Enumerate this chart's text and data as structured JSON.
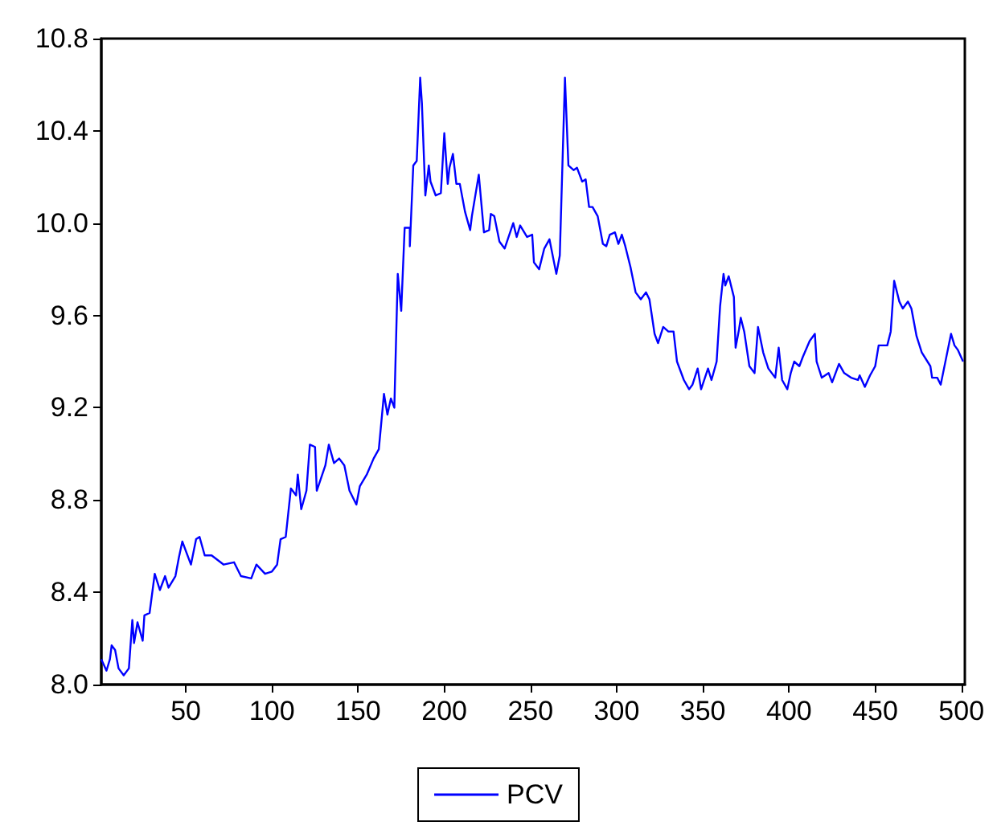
{
  "chart_data": {
    "type": "line",
    "legend": "bottom",
    "grid": false,
    "marker": "none",
    "line_style": "solid",
    "xlim": [
      1,
      502
    ],
    "xticks": [
      50,
      100,
      150,
      200,
      250,
      300,
      350,
      400,
      450,
      500
    ],
    "ylim": [
      8.0,
      10.8
    ],
    "yticks": [
      {
        "value": 8.0,
        "label": "8.0"
      },
      8.4,
      8.8,
      9.2,
      9.6,
      {
        "value": 10.0,
        "label": "10.0"
      },
      10.4,
      10.8
    ],
    "series": [
      {
        "name": "PCV",
        "color": "#0000ff",
        "x": [
          1,
          4,
          6,
          7,
          9,
          11,
          14,
          17,
          19,
          20,
          22,
          25,
          26,
          29,
          32,
          35,
          38,
          40,
          44,
          46,
          48,
          53,
          56,
          58,
          61,
          65,
          72,
          78,
          82,
          88,
          91,
          96,
          100,
          103,
          105,
          108,
          111,
          114,
          115,
          117,
          120,
          122,
          125,
          126,
          131,
          133,
          136,
          139,
          142,
          145,
          149,
          151,
          155,
          159,
          162,
          165,
          167,
          169,
          171,
          173,
          175,
          177,
          180,
          180,
          182,
          184,
          186,
          187,
          189,
          191,
          192,
          195,
          198,
          200,
          202,
          203,
          205,
          207,
          209,
          212,
          215,
          216,
          220,
          223,
          226,
          227,
          229,
          232,
          235,
          240,
          242,
          244,
          248,
          251,
          252,
          255,
          258,
          261,
          265,
          267,
          270,
          272,
          275,
          277,
          280,
          282,
          284,
          286,
          289,
          292,
          294,
          296,
          299,
          301,
          303,
          305,
          308,
          311,
          314,
          317,
          319,
          322,
          324,
          327,
          330,
          333,
          335,
          339,
          342,
          344,
          347,
          349,
          353,
          355,
          358,
          360,
          362,
          363,
          365,
          368,
          369,
          371,
          372,
          374,
          377,
          380,
          382,
          385,
          388,
          392,
          394,
          396,
          399,
          401,
          403,
          406,
          408,
          412,
          415,
          416,
          419,
          423,
          425,
          429,
          432,
          436,
          440,
          441,
          444,
          447,
          450,
          452,
          457,
          459,
          461,
          464,
          466,
          469,
          471,
          474,
          477,
          482,
          483,
          486,
          488,
          491,
          494,
          496,
          498,
          501
        ],
        "values": [
          8.11,
          8.06,
          8.11,
          8.17,
          8.15,
          8.07,
          8.04,
          8.07,
          8.28,
          8.18,
          8.27,
          8.19,
          8.3,
          8.31,
          8.48,
          8.41,
          8.47,
          8.42,
          8.47,
          8.55,
          8.62,
          8.52,
          8.63,
          8.64,
          8.56,
          8.56,
          8.52,
          8.53,
          8.47,
          8.46,
          8.52,
          8.48,
          8.49,
          8.52,
          8.63,
          8.64,
          8.85,
          8.82,
          8.91,
          8.76,
          8.84,
          9.04,
          9.03,
          8.84,
          8.95,
          9.04,
          8.96,
          8.98,
          8.95,
          8.84,
          8.78,
          8.86,
          8.91,
          8.98,
          9.02,
          9.26,
          9.17,
          9.24,
          9.2,
          9.78,
          9.62,
          9.98,
          9.98,
          9.9,
          10.25,
          10.27,
          10.63,
          10.52,
          10.12,
          10.25,
          10.18,
          10.12,
          10.13,
          10.39,
          10.17,
          10.24,
          10.3,
          10.17,
          10.17,
          10.05,
          9.97,
          10.03,
          10.21,
          9.96,
          9.97,
          10.04,
          10.03,
          9.92,
          9.89,
          10.0,
          9.94,
          9.99,
          9.94,
          9.95,
          9.83,
          9.8,
          9.89,
          9.93,
          9.78,
          9.86,
          10.63,
          10.25,
          10.23,
          10.24,
          10.18,
          10.19,
          10.07,
          10.07,
          10.03,
          9.91,
          9.9,
          9.95,
          9.96,
          9.91,
          9.95,
          9.9,
          9.81,
          9.7,
          9.67,
          9.7,
          9.67,
          9.52,
          9.48,
          9.55,
          9.53,
          9.53,
          9.4,
          9.32,
          9.28,
          9.3,
          9.37,
          9.28,
          9.37,
          9.32,
          9.4,
          9.64,
          9.78,
          9.73,
          9.77,
          9.68,
          9.46,
          9.54,
          9.59,
          9.53,
          9.38,
          9.35,
          9.55,
          9.44,
          9.37,
          9.33,
          9.46,
          9.32,
          9.28,
          9.35,
          9.4,
          9.38,
          9.42,
          9.49,
          9.52,
          9.4,
          9.33,
          9.35,
          9.31,
          9.39,
          9.35,
          9.33,
          9.32,
          9.34,
          9.29,
          9.34,
          9.38,
          9.47,
          9.47,
          9.53,
          9.75,
          9.66,
          9.63,
          9.66,
          9.63,
          9.51,
          9.44,
          9.38,
          9.33,
          9.33,
          9.3,
          9.41,
          9.52,
          9.47,
          9.45,
          9.4
        ]
      }
    ]
  }
}
